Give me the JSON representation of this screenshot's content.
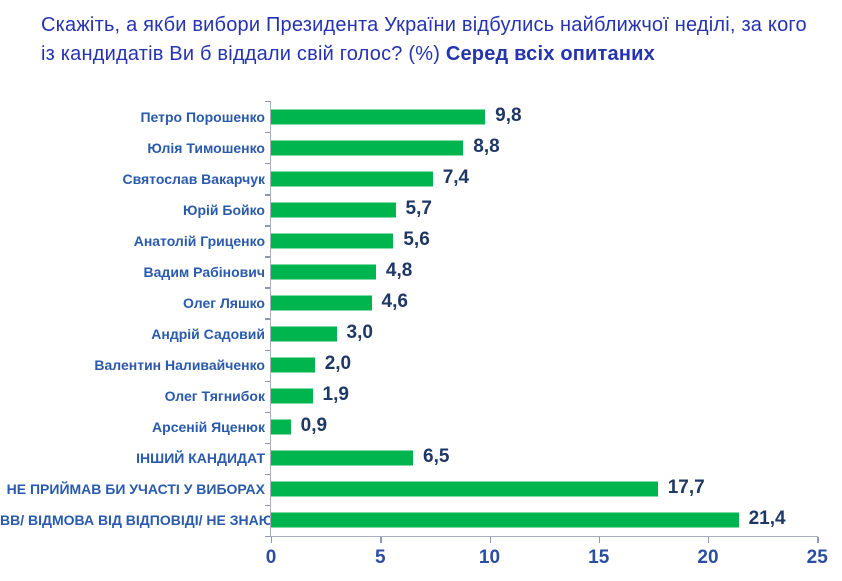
{
  "title": {
    "text": "Скажіть, а якби вибори Президента України відбулись найближчої неділі, за кого із кандидатів Ви б віддали свій голос? (%) ",
    "bold_text": "Серед всіх опитаних",
    "color": "#2533B0"
  },
  "chart_data": {
    "type": "bar",
    "orientation": "horizontal",
    "categories": [
      "Петро Порошенко",
      "Юлія Тимошенко",
      "Святослав Вакарчук",
      "Юрій Бойко",
      "Анатолій Гриценко",
      "Вадим Рабінович",
      "Олег Ляшко",
      "Андрій Садовий",
      "Валентин Наливайченко",
      "Олег Тягнибок",
      "Арсеній Яценюк",
      "ІНШИЙ КАНДИДАТ",
      "НЕ ПРИЙМАВ БИ УЧАСТІ У ВИБОРАХ",
      "ВВ/ ВІДМОВА ВІД ВІДПОВІДІ/ НЕ ЗНАЮ"
    ],
    "values": [
      9.8,
      8.8,
      7.4,
      5.7,
      5.6,
      4.8,
      4.6,
      3.0,
      2.0,
      1.9,
      0.9,
      6.5,
      17.7,
      21.4
    ],
    "value_labels": [
      "9,8",
      "8,8",
      "7,4",
      "5,7",
      "5,6",
      "4,8",
      "4,6",
      "3,0",
      "2,0",
      "1,9",
      "0,9",
      "6,5",
      "17,7",
      "21,4"
    ],
    "xlim": [
      0,
      25
    ],
    "x_ticks": [
      0,
      5,
      10,
      15,
      20,
      25
    ],
    "grid": false,
    "legend": "none",
    "colors": {
      "bar": "#00B44E",
      "category_label": "#2A5AAB",
      "value_label": "#1E3765",
      "x_tick_label": "#2B4EA3",
      "axis_line": "#A8ACBC",
      "tick_mark": "#8E97B5"
    }
  }
}
